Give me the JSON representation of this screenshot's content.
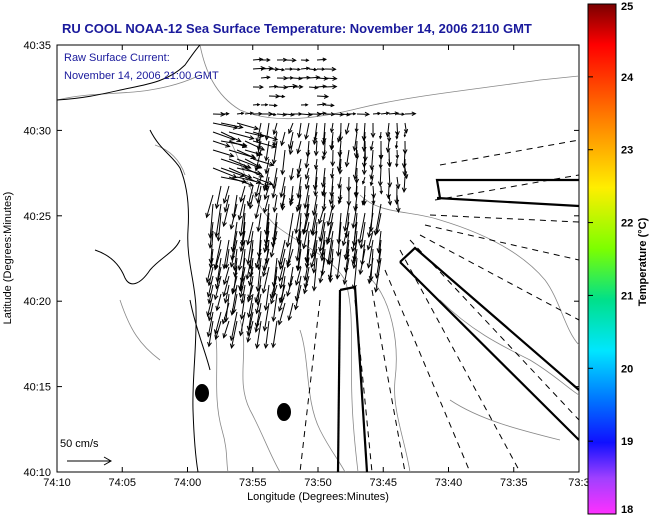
{
  "chart_data": {
    "type": "vector_field_map",
    "title": "RU COOL  NOAA-12  Sea Surface Temperature:  November 14, 2006 2110 GMT",
    "annotation": [
      "Raw Surface Current:",
      "November 14, 2006 21:00 GMT"
    ],
    "xlabel": "Longitude (Degrees:Minutes)",
    "ylabel": "Latitude (Degrees:Minutes)",
    "x_ticks": [
      "74:10",
      "74:05",
      "74:00",
      "73:55",
      "73:50",
      "73:45",
      "73:40",
      "73:35",
      "73:3"
    ],
    "y_ticks": [
      "40:35",
      "40:30",
      "40:25",
      "40:20",
      "40:15",
      "40:10"
    ],
    "scale_label": "50 cm/s",
    "colorbar": {
      "label": "Temperature (°C)",
      "ticks": [
        "25",
        "24",
        "23",
        "22",
        "21",
        "20",
        "19",
        "18"
      ],
      "range": [
        18,
        25
      ]
    },
    "grid": false
  }
}
